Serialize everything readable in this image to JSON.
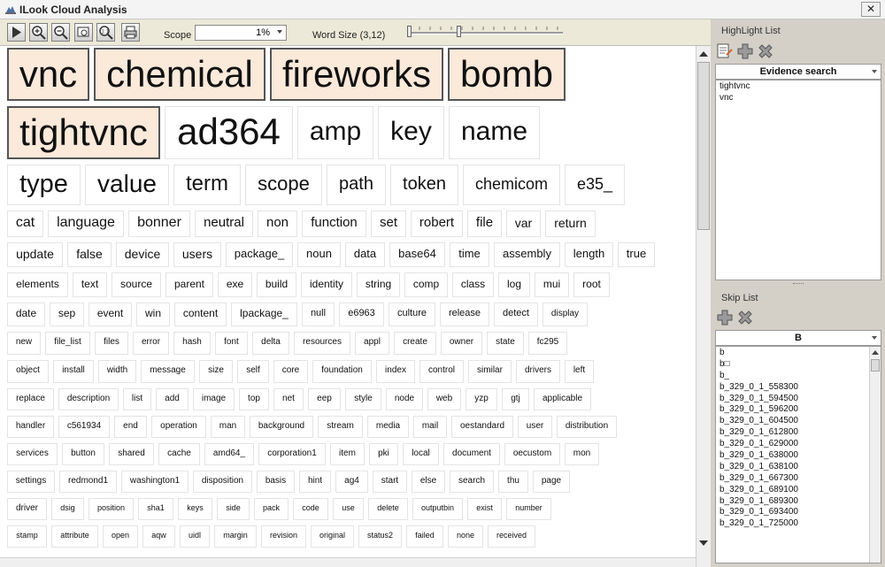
{
  "window": {
    "title": "ILook Cloud Analysis"
  },
  "toolbar": {
    "scope_label": "Scope",
    "scope_value": "1%",
    "word_size_label": "Word Size (3,12)",
    "buttons": [
      "play-icon",
      "zoom-in-icon",
      "zoom-out-icon",
      "zoom-fit-icon",
      "actual-size-icon",
      "print-icon"
    ]
  },
  "cloud": {
    "words": [
      {
        "text": "vnc",
        "size": 42,
        "hl": true
      },
      {
        "text": "chemical",
        "size": 42,
        "hl": true
      },
      {
        "text": "fireworks",
        "size": 42,
        "hl": true
      },
      {
        "text": "bomb",
        "size": 42,
        "hl": true
      },
      {
        "text": "tightvnc",
        "size": 42,
        "hl": true
      },
      {
        "text": "ad364",
        "size": 42
      },
      {
        "text": "amp",
        "size": 30
      },
      {
        "text": "key",
        "size": 30
      },
      {
        "text": "name",
        "size": 30
      },
      {
        "text": "type",
        "size": 29
      },
      {
        "text": "value",
        "size": 28
      },
      {
        "text": "term",
        "size": 24
      },
      {
        "text": "scope",
        "size": 22
      },
      {
        "text": "path",
        "size": 20
      },
      {
        "text": "token",
        "size": 20
      },
      {
        "text": "chemicom",
        "size": 18
      },
      {
        "text": "e35_",
        "size": 18
      },
      {
        "text": "cat",
        "size": 16
      },
      {
        "text": "language",
        "size": 16
      },
      {
        "text": "bonner",
        "size": 16
      },
      {
        "text": "neutral",
        "size": 15
      },
      {
        "text": "non",
        "size": 15
      },
      {
        "text": "function",
        "size": 15
      },
      {
        "text": "set",
        "size": 15
      },
      {
        "text": "robert",
        "size": 15
      },
      {
        "text": "file",
        "size": 15
      },
      {
        "text": "var",
        "size": 14
      },
      {
        "text": "return",
        "size": 14
      },
      {
        "text": "update",
        "size": 14
      },
      {
        "text": "false",
        "size": 14
      },
      {
        "text": "device",
        "size": 14
      },
      {
        "text": "users",
        "size": 14
      },
      {
        "text": "package_",
        "size": 13
      },
      {
        "text": "noun",
        "size": 13
      },
      {
        "text": "data",
        "size": 13
      },
      {
        "text": "base64",
        "size": 13
      },
      {
        "text": "time",
        "size": 13
      },
      {
        "text": "assembly",
        "size": 13
      },
      {
        "text": "length",
        "size": 13
      },
      {
        "text": "true",
        "size": 13
      },
      {
        "text": "elements",
        "size": 12
      },
      {
        "text": "text",
        "size": 12
      },
      {
        "text": "source",
        "size": 12
      },
      {
        "text": "parent",
        "size": 12
      },
      {
        "text": "exe",
        "size": 12
      },
      {
        "text": "build",
        "size": 12
      },
      {
        "text": "identity",
        "size": 12
      },
      {
        "text": "string",
        "size": 12
      },
      {
        "text": "comp",
        "size": 12
      },
      {
        "text": "class",
        "size": 12
      },
      {
        "text": "log",
        "size": 12
      },
      {
        "text": "mui",
        "size": 12
      },
      {
        "text": "root",
        "size": 12
      },
      {
        "text": "date",
        "size": 12
      },
      {
        "text": "sep",
        "size": 12
      },
      {
        "text": "event",
        "size": 12
      },
      {
        "text": "win",
        "size": 12
      },
      {
        "text": "content",
        "size": 12
      },
      {
        "text": "lpackage_",
        "size": 12
      },
      {
        "text": "null",
        "size": 11
      },
      {
        "text": "e6963",
        "size": 11
      },
      {
        "text": "culture",
        "size": 11
      },
      {
        "text": "release",
        "size": 11
      },
      {
        "text": "detect",
        "size": 11
      },
      {
        "text": "display",
        "size": 10
      },
      {
        "text": "new",
        "size": 10
      },
      {
        "text": "file_list",
        "size": 10
      },
      {
        "text": "files",
        "size": 10
      },
      {
        "text": "error",
        "size": 10
      },
      {
        "text": "hash",
        "size": 10
      },
      {
        "text": "font",
        "size": 10
      },
      {
        "text": "delta",
        "size": 10
      },
      {
        "text": "resources",
        "size": 10
      },
      {
        "text": "appl",
        "size": 10
      },
      {
        "text": "create",
        "size": 10
      },
      {
        "text": "owner",
        "size": 10
      },
      {
        "text": "state",
        "size": 10
      },
      {
        "text": "fc295",
        "size": 10
      },
      {
        "text": "object",
        "size": 10
      },
      {
        "text": "install",
        "size": 10
      },
      {
        "text": "width",
        "size": 10
      },
      {
        "text": "message",
        "size": 10
      },
      {
        "text": "size",
        "size": 10
      },
      {
        "text": "self",
        "size": 10
      },
      {
        "text": "core",
        "size": 10
      },
      {
        "text": "foundation",
        "size": 10
      },
      {
        "text": "index",
        "size": 10
      },
      {
        "text": "control",
        "size": 10
      },
      {
        "text": "similar",
        "size": 10
      },
      {
        "text": "drivers",
        "size": 10
      },
      {
        "text": "left",
        "size": 10
      },
      {
        "text": "replace",
        "size": 10
      },
      {
        "text": "description",
        "size": 10
      },
      {
        "text": "list",
        "size": 10
      },
      {
        "text": "add",
        "size": 10
      },
      {
        "text": "image",
        "size": 10
      },
      {
        "text": "top",
        "size": 10
      },
      {
        "text": "net",
        "size": 10
      },
      {
        "text": "eep",
        "size": 10
      },
      {
        "text": "style",
        "size": 10
      },
      {
        "text": "node",
        "size": 10
      },
      {
        "text": "web",
        "size": 10
      },
      {
        "text": "yzp",
        "size": 10
      },
      {
        "text": "gtj",
        "size": 10
      },
      {
        "text": "applicable",
        "size": 10
      },
      {
        "text": "handler",
        "size": 10
      },
      {
        "text": "c561934",
        "size": 10
      },
      {
        "text": "end",
        "size": 10
      },
      {
        "text": "operation",
        "size": 10
      },
      {
        "text": "man",
        "size": 10
      },
      {
        "text": "background",
        "size": 10
      },
      {
        "text": "stream",
        "size": 10
      },
      {
        "text": "media",
        "size": 10
      },
      {
        "text": "mail",
        "size": 10
      },
      {
        "text": "oestandard",
        "size": 10
      },
      {
        "text": "user",
        "size": 10
      },
      {
        "text": "distribution",
        "size": 10
      },
      {
        "text": "services",
        "size": 10
      },
      {
        "text": "button",
        "size": 10
      },
      {
        "text": "shared",
        "size": 10
      },
      {
        "text": "cache",
        "size": 10
      },
      {
        "text": "amd64_",
        "size": 10
      },
      {
        "text": "corporation1",
        "size": 10
      },
      {
        "text": "item",
        "size": 10
      },
      {
        "text": "pki",
        "size": 10
      },
      {
        "text": "local",
        "size": 10
      },
      {
        "text": "document",
        "size": 10
      },
      {
        "text": "oecustom",
        "size": 10
      },
      {
        "text": "mon",
        "size": 10
      },
      {
        "text": "settings",
        "size": 10
      },
      {
        "text": "redmond1",
        "size": 10
      },
      {
        "text": "washington1",
        "size": 10
      },
      {
        "text": "disposition",
        "size": 10
      },
      {
        "text": "basis",
        "size": 10
      },
      {
        "text": "hint",
        "size": 10
      },
      {
        "text": "ag4",
        "size": 10
      },
      {
        "text": "start",
        "size": 10
      },
      {
        "text": "else",
        "size": 10
      },
      {
        "text": "search",
        "size": 10
      },
      {
        "text": "thu",
        "size": 10
      },
      {
        "text": "page",
        "size": 10
      },
      {
        "text": "driver",
        "size": 10
      },
      {
        "text": "dsig",
        "size": 9
      },
      {
        "text": "position",
        "size": 9
      },
      {
        "text": "sha1",
        "size": 9
      },
      {
        "text": "keys",
        "size": 9
      },
      {
        "text": "side",
        "size": 9
      },
      {
        "text": "pack",
        "size": 9
      },
      {
        "text": "code",
        "size": 9
      },
      {
        "text": "use",
        "size": 9
      },
      {
        "text": "delete",
        "size": 9
      },
      {
        "text": "outputbin",
        "size": 9
      },
      {
        "text": "exist",
        "size": 9
      },
      {
        "text": "number",
        "size": 9
      },
      {
        "text": "stamp",
        "size": 9
      },
      {
        "text": "attribute",
        "size": 9
      },
      {
        "text": "open",
        "size": 9
      },
      {
        "text": "aqw",
        "size": 9
      },
      {
        "text": "uidl",
        "size": 9
      },
      {
        "text": "margin",
        "size": 9
      },
      {
        "text": "revision",
        "size": 9
      },
      {
        "text": "original",
        "size": 9
      },
      {
        "text": "status2",
        "size": 9
      },
      {
        "text": "failed",
        "size": 9
      },
      {
        "text": "none",
        "size": 9
      },
      {
        "text": "received",
        "size": 9
      }
    ]
  },
  "highlight_list": {
    "title": "HighLight List",
    "header": "Evidence search",
    "items": [
      "tightvnc",
      "vnc"
    ],
    "tools": [
      "edit-list-icon",
      "add-icon",
      "delete-icon"
    ]
  },
  "skip_list": {
    "title": "Skip List",
    "header": "B",
    "items": [
      "b",
      "b□",
      "b_",
      "b_329_0_1_558300",
      "b_329_0_1_594500",
      "b_329_0_1_596200",
      "b_329_0_1_604500",
      "b_329_0_1_612800",
      "b_329_0_1_629000",
      "b_329_0_1_638000",
      "b_329_0_1_638100",
      "b_329_0_1_667300",
      "b_329_0_1_689100",
      "b_329_0_1_689300",
      "b_329_0_1_693400",
      "b_329_0_1_725000"
    ],
    "tools": [
      "add-icon",
      "delete-icon"
    ]
  },
  "colors": {
    "highlight_fill": "#fbe9da",
    "panel_bg": "#d4d0c8",
    "cloud_bg": "#ffffff"
  }
}
